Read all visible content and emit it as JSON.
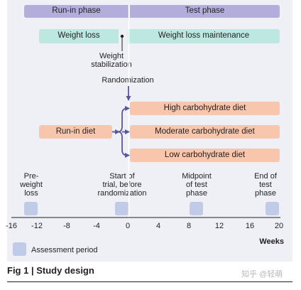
{
  "phases": {
    "run_in": "Run-in phase",
    "test": "Test phase"
  },
  "weight": {
    "loss": "Weight loss",
    "maintenance": "Weight loss maintenance",
    "stabilization": "Weight\nstabilization"
  },
  "randomization": "Randomization",
  "run_in_diet": "Run-in diet",
  "diets": [
    "High carbohydrate diet",
    "Moderate carbohydrate diet",
    "Low carbohydrate diet"
  ],
  "assessments": [
    "Pre-\nweight\nloss",
    "Start of\ntrial, before\nrandomization",
    "Midpoint\nof test\nphase",
    "End of\ntest\nphase"
  ],
  "axis": {
    "ticks": [
      "-16",
      "-12",
      "-8",
      "-4",
      "0",
      "4",
      "8",
      "12",
      "16",
      "20"
    ],
    "label": "Weeks"
  },
  "legend": {
    "assessment_period": "Assessment period"
  },
  "caption": "Fig 1 | Study design",
  "watermark": "知乎 @轻萌",
  "colors": {
    "phase": "#b2addb",
    "weight": "#bde8e2",
    "diet": "#f8c6ad",
    "assessment": "#c0cbe8",
    "arrow": "#5b5698",
    "panel": "#eef0f6"
  }
}
